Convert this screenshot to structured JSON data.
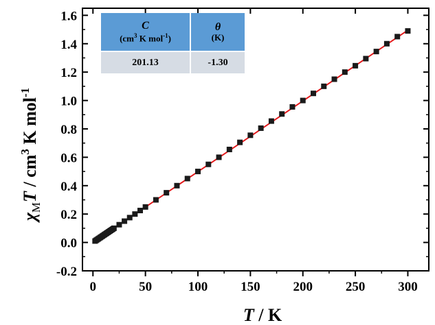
{
  "chart_data": {
    "type": "scatter",
    "xlabel": {
      "symbol": "T",
      "unit": " / K"
    },
    "ylabel": {
      "symbol": "χ",
      "sub": "M",
      "symbol2": "T",
      "unit_a": " / cm",
      "sup_a": "3",
      "unit_b": " K mol",
      "sup_b": "-1"
    },
    "xlim": [
      -10,
      320
    ],
    "ylim": [
      -0.2,
      1.65
    ],
    "xticks": [
      0,
      50,
      100,
      150,
      200,
      250,
      300
    ],
    "yticks": [
      -0.2,
      0.0,
      0.2,
      0.4,
      0.6,
      0.8,
      1.0,
      1.2,
      1.4,
      1.6
    ],
    "ytick_labels": [
      "-0.2",
      "0.0",
      "0.2",
      "0.4",
      "0.6",
      "0.8",
      "1.0",
      "1.2",
      "1.4",
      "1.6"
    ],
    "grid": false,
    "series": [
      {
        "marker": "square",
        "color": "#1a1a1a",
        "x": [
          2,
          3,
          4,
          5,
          6,
          7,
          8,
          9,
          10,
          11,
          12,
          13,
          14,
          15,
          16,
          17,
          18,
          19,
          20,
          25,
          30,
          35,
          40,
          45,
          50,
          60,
          70,
          80,
          90,
          100,
          110,
          120,
          130,
          140,
          150,
          160,
          170,
          180,
          190,
          200,
          210,
          220,
          230,
          240,
          250,
          260,
          270,
          280,
          290,
          300
        ],
        "y": [
          0.01,
          0.015,
          0.02,
          0.025,
          0.03,
          0.035,
          0.04,
          0.045,
          0.05,
          0.055,
          0.06,
          0.065,
          0.07,
          0.075,
          0.08,
          0.085,
          0.09,
          0.095,
          0.1,
          0.125,
          0.15,
          0.175,
          0.2,
          0.225,
          0.25,
          0.3,
          0.35,
          0.4,
          0.45,
          0.5,
          0.55,
          0.6,
          0.655,
          0.705,
          0.755,
          0.805,
          0.855,
          0.905,
          0.955,
          1.0,
          1.05,
          1.1,
          1.15,
          1.2,
          1.245,
          1.295,
          1.345,
          1.4,
          1.45,
          1.49
        ]
      }
    ],
    "fit_line": {
      "color": "#e31a1c",
      "x": [
        1,
        300
      ],
      "y": [
        0.005,
        1.495
      ]
    }
  },
  "table": {
    "col1_symbol": "C",
    "col1_unit_a": "(cm",
    "col1_unit_sup": "3",
    "col1_unit_b": " K mol",
    "col1_unit_sup2": "-1",
    "col1_unit_c": ")",
    "col2_symbol": "θ",
    "col2_unit": "(K)",
    "col1_value": "201.13",
    "col2_value": "-1.30"
  }
}
